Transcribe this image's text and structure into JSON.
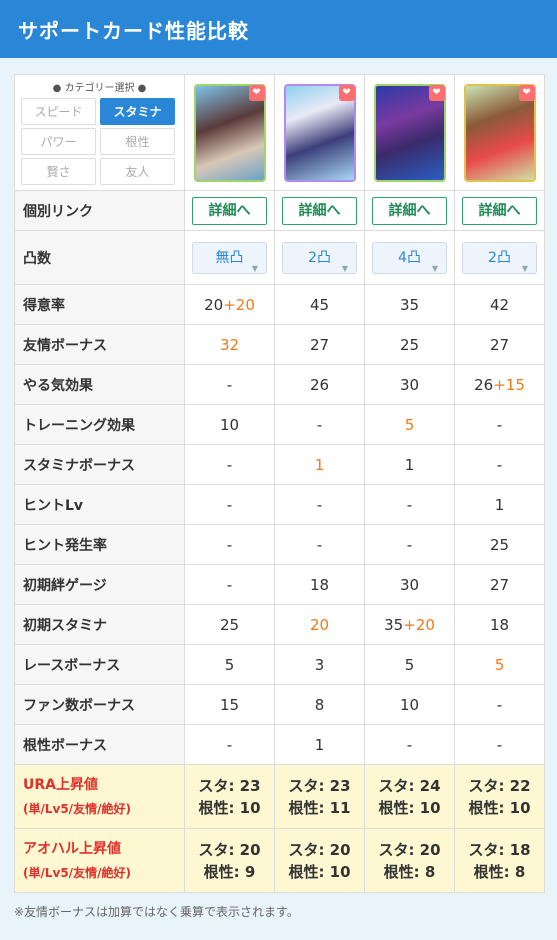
{
  "header": {
    "title": "サポートカード性能比較"
  },
  "category": {
    "title": "● カテゴリー選択 ●",
    "buttons": [
      "スピード",
      "スタミナ",
      "パワー",
      "根性",
      "賢さ",
      "友人"
    ],
    "selected": "スタミナ"
  },
  "cards": [
    {
      "icon": "heart-icon"
    },
    {
      "icon": "heart-icon"
    },
    {
      "icon": "heart-icon"
    },
    {
      "icon": "heart-icon"
    }
  ],
  "link_row": {
    "label": "個別リンク",
    "button": "詳細へ"
  },
  "limit_row": {
    "label": "凸数",
    "values": [
      "無凸",
      "2凸",
      "4凸",
      "2凸"
    ]
  },
  "rows": [
    {
      "label": "得意率",
      "cells": [
        [
          "20",
          "+20"
        ],
        [
          "45",
          ""
        ],
        [
          "35",
          ""
        ],
        [
          "42",
          ""
        ]
      ]
    },
    {
      "label": "友情ボーナス",
      "cells": [
        [
          "",
          "32"
        ],
        [
          "27",
          ""
        ],
        [
          "25",
          ""
        ],
        [
          "27",
          ""
        ]
      ]
    },
    {
      "label": "やる気効果",
      "cells": [
        [
          "-",
          ""
        ],
        [
          "26",
          ""
        ],
        [
          "30",
          ""
        ],
        [
          "26",
          "+15"
        ]
      ]
    },
    {
      "label": "トレーニング効果",
      "cells": [
        [
          "10",
          ""
        ],
        [
          "-",
          ""
        ],
        [
          "",
          "5"
        ],
        [
          "-",
          ""
        ]
      ]
    },
    {
      "label": "スタミナボーナス",
      "cells": [
        [
          "-",
          ""
        ],
        [
          "",
          "1"
        ],
        [
          "1",
          ""
        ],
        [
          "-",
          ""
        ]
      ]
    },
    {
      "label": "ヒントLv",
      "cells": [
        [
          "-",
          ""
        ],
        [
          "-",
          ""
        ],
        [
          "-",
          ""
        ],
        [
          "1",
          ""
        ]
      ]
    },
    {
      "label": "ヒント発生率",
      "cells": [
        [
          "-",
          ""
        ],
        [
          "-",
          ""
        ],
        [
          "-",
          ""
        ],
        [
          "25",
          ""
        ]
      ]
    },
    {
      "label": "初期絆ゲージ",
      "cells": [
        [
          "-",
          ""
        ],
        [
          "18",
          ""
        ],
        [
          "30",
          ""
        ],
        [
          "27",
          ""
        ]
      ]
    },
    {
      "label": "初期スタミナ",
      "cells": [
        [
          "25",
          ""
        ],
        [
          "",
          "20"
        ],
        [
          "35",
          "+20"
        ],
        [
          "18",
          ""
        ]
      ]
    },
    {
      "label": "レースボーナス",
      "cells": [
        [
          "5",
          ""
        ],
        [
          "3",
          ""
        ],
        [
          "5",
          ""
        ],
        [
          "",
          "5"
        ]
      ]
    },
    {
      "label": "ファン数ボーナス",
      "cells": [
        [
          "15",
          ""
        ],
        [
          "8",
          ""
        ],
        [
          "10",
          ""
        ],
        [
          "-",
          ""
        ]
      ]
    },
    {
      "label": "根性ボーナス",
      "cells": [
        [
          "-",
          ""
        ],
        [
          "1",
          ""
        ],
        [
          "-",
          ""
        ],
        [
          "-",
          ""
        ]
      ]
    }
  ],
  "ura": {
    "label": "URA上昇値",
    "sub": "(単/Lv5/友情/絶好)",
    "cells": [
      [
        "スタ: 23",
        "根性: 10"
      ],
      [
        "スタ: 23",
        "根性: 11"
      ],
      [
        "スタ: 24",
        "根性: 10"
      ],
      [
        "スタ: 22",
        "根性: 10"
      ]
    ]
  },
  "aoharu": {
    "label": "アオハル上昇値",
    "sub": "(単/Lv5/友情/絶好)",
    "cells": [
      [
        "スタ: 20",
        "根性: 9"
      ],
      [
        "スタ: 20",
        "根性: 10"
      ],
      [
        "スタ: 20",
        "根性: 8"
      ],
      [
        "スタ: 18",
        "根性: 8"
      ]
    ]
  },
  "note": "※友情ボーナスは加算ではなく乗算で表示されます。",
  "colors": {
    "header": "#2a86d6",
    "highlight": "#f07a1a",
    "link": "#1e8a55",
    "hl_label": "#e0302a"
  }
}
